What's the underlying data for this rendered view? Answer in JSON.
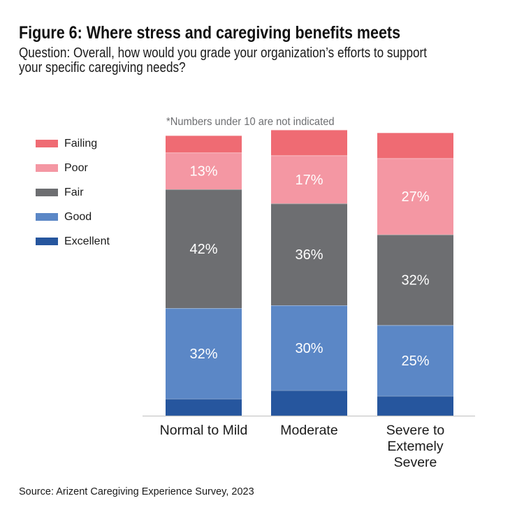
{
  "title": "Figure 6: Where stress and caregiving benefits meets",
  "subtitle": [
    "Question: Overall, how would you grade your organization’s efforts to support",
    "your specific caregiving needs?"
  ],
  "note": "*Numbers under 10 are not indicated",
  "source": "Source: Arizent Caregiving Experience Survey, 2023",
  "chart_data": {
    "type": "bar",
    "stacked": true,
    "title": "Figure 6: Where stress and caregiving benefits meets",
    "xlabel": "",
    "ylabel": "",
    "ylim": [
      0,
      100
    ],
    "grid": false,
    "legend_position": "left",
    "label_threshold": 10,
    "categories": [
      [
        "Normal to Mild"
      ],
      [
        "Moderate"
      ],
      [
        "Severe to",
        "Extemely",
        "Severe"
      ]
    ],
    "series": [
      {
        "name": "Excellent",
        "color": "#26569e",
        "values": [
          6,
          9,
          7
        ]
      },
      {
        "name": "Good",
        "color": "#5b87c6",
        "values": [
          32,
          30,
          25
        ]
      },
      {
        "name": "Fair",
        "color": "#6d6e71",
        "values": [
          42,
          36,
          32
        ]
      },
      {
        "name": "Poor",
        "color": "#f497a3",
        "values": [
          13,
          17,
          27
        ]
      },
      {
        "name": "Failing",
        "color": "#ef6b73",
        "values": [
          6,
          9,
          9
        ]
      }
    ],
    "legend_order": [
      "Failing",
      "Poor",
      "Fair",
      "Good",
      "Excellent"
    ],
    "value_suffix": "%"
  }
}
